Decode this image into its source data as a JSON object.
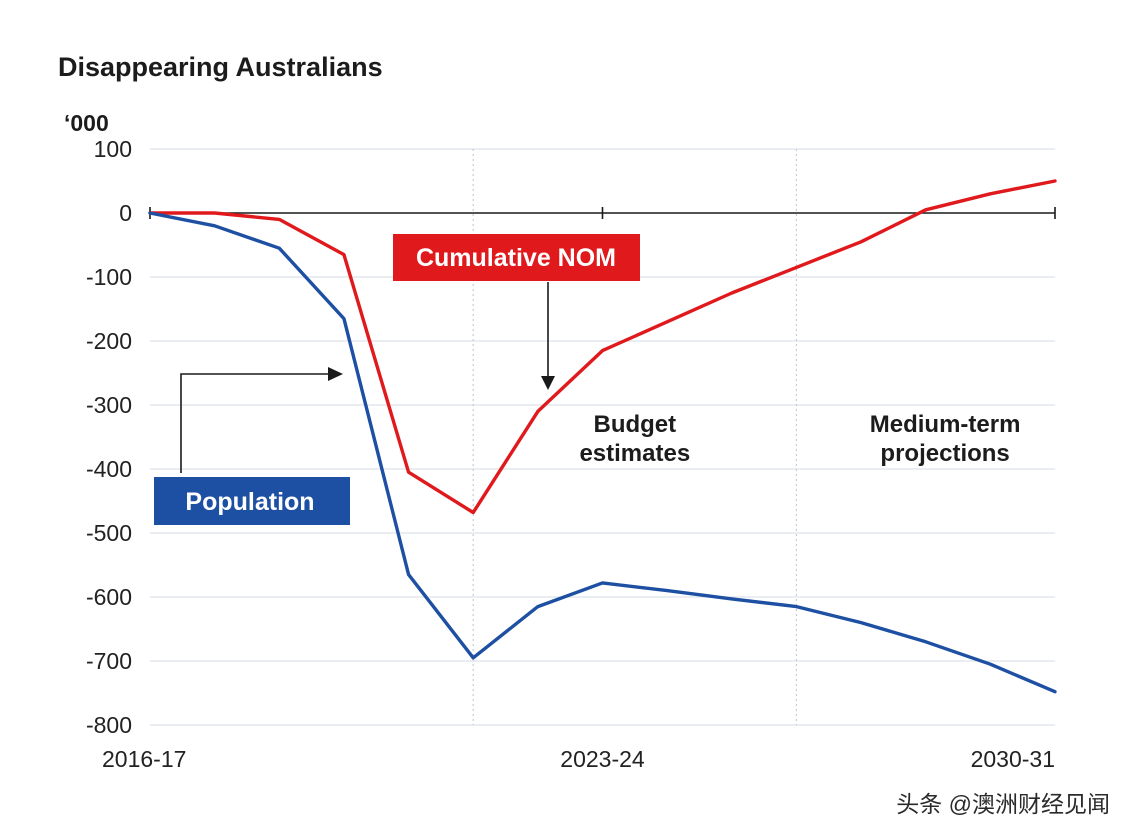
{
  "chart_data": {
    "type": "line",
    "title": "Disappearing Australians",
    "ylabel": "‘000",
    "ylim": [
      -800,
      100
    ],
    "yticks": [
      100,
      0,
      -100,
      -200,
      -300,
      -400,
      -500,
      -600,
      -700,
      -800
    ],
    "xlim": [
      0,
      14
    ],
    "xtick_labels": [
      {
        "x": 0,
        "label": "2016-17"
      },
      {
        "x": 7,
        "label": "2023-24"
      },
      {
        "x": 14,
        "label": "2030-31"
      }
    ],
    "grid": "horizontal",
    "region_dividers": [
      5,
      10
    ],
    "series": [
      {
        "name": "Cumulative NOM",
        "color": "#e0191c",
        "x": [
          0,
          1,
          2,
          3,
          4,
          5,
          6,
          7,
          8,
          9,
          10,
          11,
          12,
          13,
          14
        ],
        "values": [
          0,
          0,
          -10,
          -65,
          -405,
          -468,
          -310,
          -215,
          -170,
          -125,
          -85,
          -45,
          5,
          30,
          50
        ]
      },
      {
        "name": "Population",
        "color": "#1d4fa3",
        "x": [
          0,
          1,
          2,
          3,
          4,
          5,
          6,
          7,
          8,
          9,
          10,
          11,
          12,
          13,
          14
        ],
        "values": [
          0,
          -20,
          -55,
          -165,
          -565,
          -695,
          -615,
          -578,
          -590,
          -603,
          -615,
          -640,
          -670,
          -705,
          -748
        ]
      }
    ],
    "annotations": [
      {
        "text": "Budget estimates",
        "lines": [
          "Budget",
          "estimates"
        ],
        "x": 7.5
      },
      {
        "text": "Medium-term projections",
        "lines": [
          "Medium-term",
          "projections"
        ],
        "x": 12.3
      }
    ]
  },
  "labels": {
    "nom_box": "Cumulative NOM",
    "population_box": "Population"
  },
  "watermark": "头条 @澳洲财经见闻"
}
